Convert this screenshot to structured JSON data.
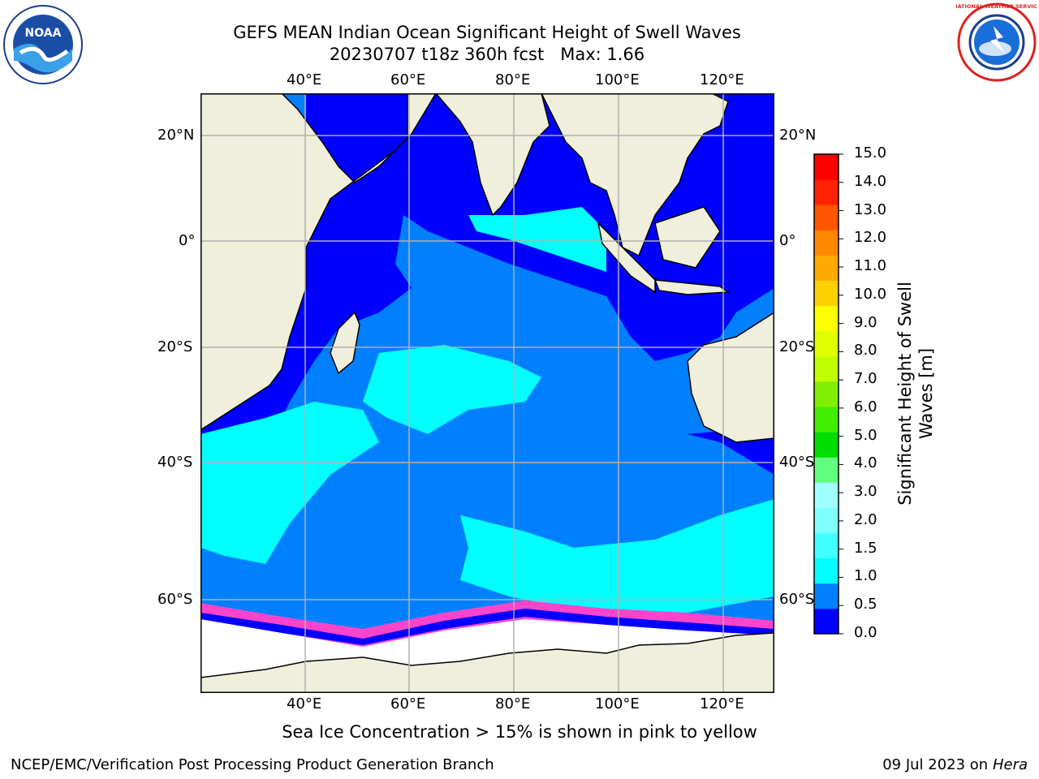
{
  "title_line1": "GEFS MEAN Indian Ocean Significant Height of Swell Waves",
  "title_line2": "20230707 t18z 360h fcst   Max: 1.66",
  "logos": {
    "left": "NOAA",
    "right": "NATIONAL WEATHER SERVICE"
  },
  "map": {
    "lon_ticks": [
      "40°E",
      "60°E",
      "80°E",
      "100°E",
      "120°E"
    ],
    "lat_ticks": [
      "20°N",
      "0°",
      "20°S",
      "40°S",
      "60°S"
    ],
    "colors": {
      "land": "#efefdc",
      "ocean_low": "#0000ff",
      "ocean_mid": "#0080ff",
      "ocean_high": "#00ffff",
      "ice": "#ffffff",
      "ice_edge": "#ff44cc",
      "grid": "#b0b0b0"
    }
  },
  "colorbar": {
    "labels": [
      "15.0",
      "14.0",
      "13.0",
      "12.0",
      "11.0",
      "10.0",
      "9.0",
      "8.0",
      "7.0",
      "6.0",
      "5.0",
      "4.0",
      "3.0",
      "2.0",
      "1.5",
      "1.0",
      "0.5",
      "0.0"
    ],
    "colors": [
      "#0000ff",
      "#0080ff",
      "#00ffff",
      "#40ffff",
      "#80ffff",
      "#a0ffff",
      "#60ff80",
      "#00dd00",
      "#40ee00",
      "#80ee00",
      "#c0ff00",
      "#e0ff00",
      "#ffff00",
      "#ffd000",
      "#ffaa00",
      "#ff8800",
      "#ff5500",
      "#ff2200",
      "#ff0000"
    ],
    "title": "Significant Height of Swell\nWaves [m]"
  },
  "footer_note": "Sea Ice Concentration > 15% is shown in pink to yellow",
  "credit_left": "NCEP/EMC/Verification Post Processing Product Generation Branch",
  "credit_right_prefix": "09 Jul 2023 on ",
  "credit_right_host": "Hera"
}
